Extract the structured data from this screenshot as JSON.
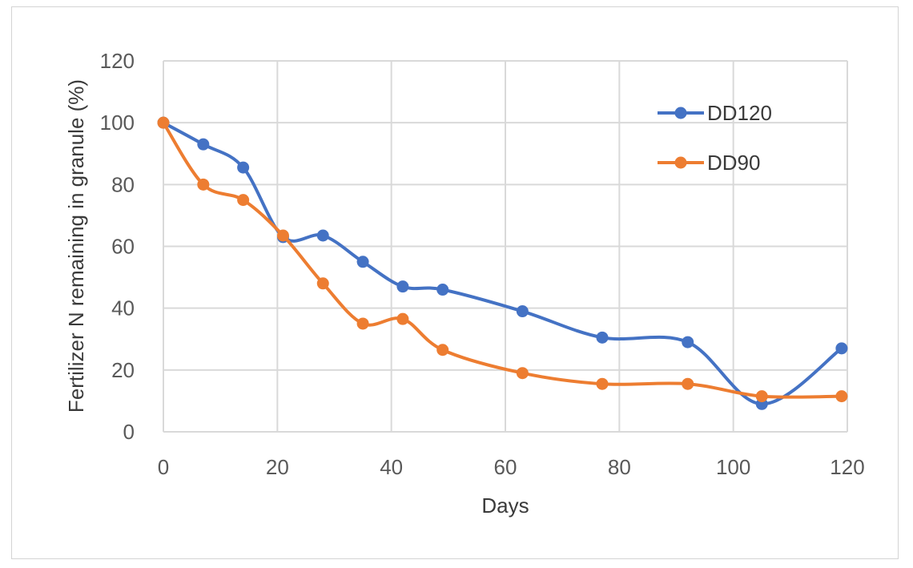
{
  "chart_data": {
    "type": "line",
    "xlabel": "Days",
    "ylabel": "Fertilizer N remaining in granule (%)",
    "xlim": [
      0,
      120
    ],
    "ylim": [
      0,
      120
    ],
    "x_ticks": [
      0,
      20,
      40,
      60,
      80,
      100,
      120
    ],
    "y_ticks": [
      0,
      20,
      40,
      60,
      80,
      100,
      120
    ],
    "grid": true,
    "legend_position": "top-right",
    "smoothed": true,
    "series": [
      {
        "name": "DD120",
        "color": "#4472C4",
        "points": [
          [
            0,
            100
          ],
          [
            7,
            93
          ],
          [
            14,
            85.5
          ],
          [
            21,
            63
          ],
          [
            28,
            63.5
          ],
          [
            35,
            55
          ],
          [
            42,
            47
          ],
          [
            49,
            46
          ],
          [
            63,
            39
          ],
          [
            77,
            30.5
          ],
          [
            92,
            29
          ],
          [
            105,
            9
          ],
          [
            119,
            27
          ]
        ]
      },
      {
        "name": "DD90",
        "color": "#ED7D31",
        "points": [
          [
            0,
            100
          ],
          [
            7,
            80
          ],
          [
            14,
            75
          ],
          [
            21,
            63.5
          ],
          [
            28,
            48
          ],
          [
            35,
            35
          ],
          [
            42,
            36.5
          ],
          [
            49,
            26.5
          ],
          [
            63,
            19
          ],
          [
            77,
            15.5
          ],
          [
            92,
            15.5
          ],
          [
            105,
            11.5
          ],
          [
            119,
            11.5
          ]
        ]
      }
    ]
  }
}
